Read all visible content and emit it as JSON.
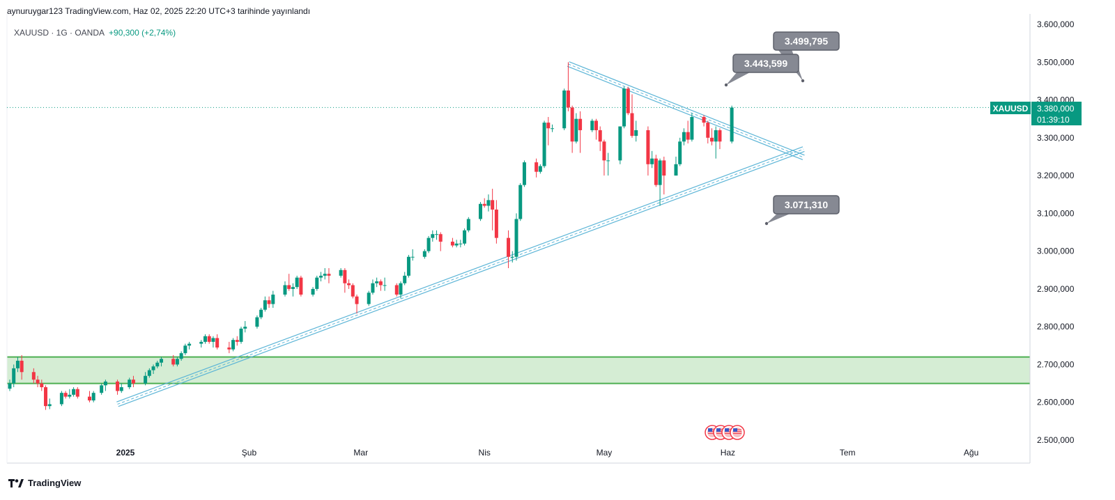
{
  "header": {
    "publisher_line": "aynuruygar123 TradingView.com, Haz 02, 2025 22:20 UTC+3 tarihinde yayınlandı"
  },
  "symbol": {
    "info": "XAUUSD · 1G · OANDA",
    "change": "+90,300 (+2,74%)"
  },
  "footer": {
    "logo_text": "TradingView"
  },
  "colors": {
    "up": "#089981",
    "down": "#f23645",
    "trendline": "#5ab4d6",
    "zone_fill": "#d5edd4",
    "zone_border": "#4caf50",
    "callout": "#868993"
  },
  "price_badge": {
    "symbol": "XAUUSD",
    "price": "3.380,000",
    "countdown": "01:39:10"
  },
  "chart_data": {
    "type": "candlestick",
    "y_axis_ticks": [
      "3.600,000",
      "3.500,000",
      "3.400,000",
      "3.300,000",
      "3.200,000",
      "3.100,000",
      "3.000,000",
      "2.900,000",
      "2.800,000",
      "2.700,000",
      "2.600,000",
      "2.500,000"
    ],
    "x_axis_labels": [
      {
        "label": "2025",
        "date": "2025-01-01"
      },
      {
        "label": "Şub",
        "date": "2025-02-01"
      },
      {
        "label": "Mar",
        "date": "2025-03-01"
      },
      {
        "label": "Nis",
        "date": "2025-04-01"
      },
      {
        "label": "May",
        "date": "2025-05-01"
      },
      {
        "label": "Haz",
        "date": "2025-06-01"
      },
      {
        "label": "Tem",
        "date": "2025-07-01"
      },
      {
        "label": "Ağu",
        "date": "2025-08-01"
      }
    ],
    "ylim": [
      2500,
      3600
    ],
    "date_range": [
      "2024-12-03",
      "2025-08-14"
    ],
    "candles": [
      {
        "date": "2024-12-03",
        "o": 2636,
        "h": 2660,
        "l": 2630,
        "c": 2650
      },
      {
        "date": "2024-12-04",
        "o": 2650,
        "h": 2700,
        "l": 2640,
        "c": 2690
      },
      {
        "date": "2024-12-05",
        "o": 2690,
        "h": 2720,
        "l": 2680,
        "c": 2710
      },
      {
        "date": "2024-12-06",
        "o": 2710,
        "h": 2725,
        "l": 2660,
        "c": 2680
      },
      {
        "date": "2024-12-09",
        "o": 2680,
        "h": 2690,
        "l": 2650,
        "c": 2660
      },
      {
        "date": "2024-12-10",
        "o": 2660,
        "h": 2670,
        "l": 2640,
        "c": 2650
      },
      {
        "date": "2024-12-11",
        "o": 2650,
        "h": 2660,
        "l": 2630,
        "c": 2640
      },
      {
        "date": "2024-12-12",
        "o": 2640,
        "h": 2645,
        "l": 2580,
        "c": 2590
      },
      {
        "date": "2024-12-13",
        "o": 2590,
        "h": 2610,
        "l": 2582,
        "c": 2595
      },
      {
        "date": "2024-12-16",
        "o": 2595,
        "h": 2630,
        "l": 2590,
        "c": 2625
      },
      {
        "date": "2024-12-17",
        "o": 2625,
        "h": 2630,
        "l": 2610,
        "c": 2615
      },
      {
        "date": "2024-12-18",
        "o": 2615,
        "h": 2635,
        "l": 2610,
        "c": 2620
      },
      {
        "date": "2024-12-19",
        "o": 2620,
        "h": 2640,
        "l": 2615,
        "c": 2635
      },
      {
        "date": "2024-12-20",
        "o": 2635,
        "h": 2640,
        "l": 2610,
        "c": 2615
      },
      {
        "date": "2024-12-23",
        "o": 2615,
        "h": 2630,
        "l": 2600,
        "c": 2605
      },
      {
        "date": "2024-12-24",
        "o": 2605,
        "h": 2630,
        "l": 2600,
        "c": 2625
      },
      {
        "date": "2024-12-26",
        "o": 2625,
        "h": 2650,
        "l": 2620,
        "c": 2645
      },
      {
        "date": "2024-12-27",
        "o": 2645,
        "h": 2660,
        "l": 2630,
        "c": 2655
      },
      {
        "date": "2024-12-30",
        "o": 2655,
        "h": 2660,
        "l": 2620,
        "c": 2630
      },
      {
        "date": "2024-12-31",
        "o": 2630,
        "h": 2650,
        "l": 2625,
        "c": 2640
      },
      {
        "date": "2025-01-02",
        "o": 2640,
        "h": 2665,
        "l": 2635,
        "c": 2660
      },
      {
        "date": "2025-01-03",
        "o": 2660,
        "h": 2670,
        "l": 2640,
        "c": 2650
      },
      {
        "date": "2025-01-06",
        "o": 2650,
        "h": 2680,
        "l": 2645,
        "c": 2670
      },
      {
        "date": "2025-01-07",
        "o": 2670,
        "h": 2690,
        "l": 2665,
        "c": 2685
      },
      {
        "date": "2025-01-08",
        "o": 2685,
        "h": 2700,
        "l": 2675,
        "c": 2695
      },
      {
        "date": "2025-01-09",
        "o": 2695,
        "h": 2710,
        "l": 2690,
        "c": 2705
      },
      {
        "date": "2025-01-10",
        "o": 2705,
        "h": 2720,
        "l": 2695,
        "c": 2715
      },
      {
        "date": "2025-01-13",
        "o": 2715,
        "h": 2725,
        "l": 2695,
        "c": 2700
      },
      {
        "date": "2025-01-14",
        "o": 2700,
        "h": 2720,
        "l": 2695,
        "c": 2715
      },
      {
        "date": "2025-01-15",
        "o": 2715,
        "h": 2735,
        "l": 2710,
        "c": 2730
      },
      {
        "date": "2025-01-16",
        "o": 2730,
        "h": 2755,
        "l": 2725,
        "c": 2750
      },
      {
        "date": "2025-01-17",
        "o": 2750,
        "h": 2760,
        "l": 2740,
        "c": 2755
      },
      {
        "date": "2025-01-20",
        "o": 2755,
        "h": 2765,
        "l": 2745,
        "c": 2760
      },
      {
        "date": "2025-01-21",
        "o": 2760,
        "h": 2780,
        "l": 2755,
        "c": 2775
      },
      {
        "date": "2025-01-22",
        "o": 2775,
        "h": 2780,
        "l": 2755,
        "c": 2760
      },
      {
        "date": "2025-01-23",
        "o": 2760,
        "h": 2775,
        "l": 2745,
        "c": 2770
      },
      {
        "date": "2025-01-24",
        "o": 2770,
        "h": 2780,
        "l": 2740,
        "c": 2745
      },
      {
        "date": "2025-01-27",
        "o": 2745,
        "h": 2760,
        "l": 2730,
        "c": 2740
      },
      {
        "date": "2025-01-28",
        "o": 2740,
        "h": 2770,
        "l": 2735,
        "c": 2765
      },
      {
        "date": "2025-01-29",
        "o": 2765,
        "h": 2775,
        "l": 2750,
        "c": 2760
      },
      {
        "date": "2025-01-30",
        "o": 2760,
        "h": 2800,
        "l": 2755,
        "c": 2795
      },
      {
        "date": "2025-01-31",
        "o": 2795,
        "h": 2815,
        "l": 2785,
        "c": 2800
      },
      {
        "date": "2025-02-03",
        "o": 2800,
        "h": 2830,
        "l": 2795,
        "c": 2825
      },
      {
        "date": "2025-02-04",
        "o": 2825,
        "h": 2850,
        "l": 2820,
        "c": 2845
      },
      {
        "date": "2025-02-05",
        "o": 2845,
        "h": 2880,
        "l": 2840,
        "c": 2870
      },
      {
        "date": "2025-02-06",
        "o": 2870,
        "h": 2880,
        "l": 2850,
        "c": 2860
      },
      {
        "date": "2025-02-07",
        "o": 2860,
        "h": 2895,
        "l": 2850,
        "c": 2885
      },
      {
        "date": "2025-02-10",
        "o": 2885,
        "h": 2920,
        "l": 2880,
        "c": 2910
      },
      {
        "date": "2025-02-11",
        "o": 2910,
        "h": 2940,
        "l": 2895,
        "c": 2900
      },
      {
        "date": "2025-02-12",
        "o": 2900,
        "h": 2915,
        "l": 2880,
        "c": 2905
      },
      {
        "date": "2025-02-13",
        "o": 2905,
        "h": 2935,
        "l": 2900,
        "c": 2930
      },
      {
        "date": "2025-02-14",
        "o": 2930,
        "h": 2935,
        "l": 2880,
        "c": 2885
      },
      {
        "date": "2025-02-17",
        "o": 2885,
        "h": 2905,
        "l": 2880,
        "c": 2900
      },
      {
        "date": "2025-02-18",
        "o": 2900,
        "h": 2935,
        "l": 2895,
        "c": 2930
      },
      {
        "date": "2025-02-19",
        "o": 2930,
        "h": 2945,
        "l": 2920,
        "c": 2935
      },
      {
        "date": "2025-02-20",
        "o": 2935,
        "h": 2955,
        "l": 2925,
        "c": 2940
      },
      {
        "date": "2025-02-21",
        "o": 2940,
        "h": 2955,
        "l": 2915,
        "c": 2935
      },
      {
        "date": "2025-02-24",
        "o": 2935,
        "h": 2955,
        "l": 2930,
        "c": 2950
      },
      {
        "date": "2025-02-25",
        "o": 2950,
        "h": 2955,
        "l": 2890,
        "c": 2915
      },
      {
        "date": "2025-02-26",
        "o": 2915,
        "h": 2925,
        "l": 2900,
        "c": 2910
      },
      {
        "date": "2025-02-27",
        "o": 2910,
        "h": 2915,
        "l": 2875,
        "c": 2880
      },
      {
        "date": "2025-02-28",
        "o": 2880,
        "h": 2885,
        "l": 2835,
        "c": 2860
      },
      {
        "date": "2025-03-03",
        "o": 2860,
        "h": 2895,
        "l": 2855,
        "c": 2890
      },
      {
        "date": "2025-03-04",
        "o": 2890,
        "h": 2925,
        "l": 2885,
        "c": 2915
      },
      {
        "date": "2025-03-05",
        "o": 2915,
        "h": 2930,
        "l": 2905,
        "c": 2920
      },
      {
        "date": "2025-03-06",
        "o": 2920,
        "h": 2925,
        "l": 2895,
        "c": 2910
      },
      {
        "date": "2025-03-07",
        "o": 2910,
        "h": 2930,
        "l": 2895,
        "c": 2910
      },
      {
        "date": "2025-03-10",
        "o": 2910,
        "h": 2915,
        "l": 2880,
        "c": 2885
      },
      {
        "date": "2025-03-11",
        "o": 2885,
        "h": 2920,
        "l": 2875,
        "c": 2915
      },
      {
        "date": "2025-03-12",
        "o": 2915,
        "h": 2945,
        "l": 2910,
        "c": 2935
      },
      {
        "date": "2025-03-13",
        "o": 2935,
        "h": 2990,
        "l": 2930,
        "c": 2985
      },
      {
        "date": "2025-03-14",
        "o": 2985,
        "h": 3005,
        "l": 2975,
        "c": 2985
      },
      {
        "date": "2025-03-17",
        "o": 2985,
        "h": 3005,
        "l": 2980,
        "c": 3000
      },
      {
        "date": "2025-03-18",
        "o": 3000,
        "h": 3040,
        "l": 2995,
        "c": 3035
      },
      {
        "date": "2025-03-19",
        "o": 3035,
        "h": 3055,
        "l": 3025,
        "c": 3045
      },
      {
        "date": "2025-03-20",
        "o": 3045,
        "h": 3055,
        "l": 3030,
        "c": 3045
      },
      {
        "date": "2025-03-21",
        "o": 3045,
        "h": 3050,
        "l": 3000,
        "c": 3025
      },
      {
        "date": "2025-03-24",
        "o": 3025,
        "h": 3035,
        "l": 3010,
        "c": 3015
      },
      {
        "date": "2025-03-25",
        "o": 3015,
        "h": 3030,
        "l": 3010,
        "c": 3020
      },
      {
        "date": "2025-03-26",
        "o": 3020,
        "h": 3030,
        "l": 3010,
        "c": 3020
      },
      {
        "date": "2025-03-27",
        "o": 3020,
        "h": 3060,
        "l": 3015,
        "c": 3055
      },
      {
        "date": "2025-03-28",
        "o": 3055,
        "h": 3090,
        "l": 3050,
        "c": 3085
      },
      {
        "date": "2025-03-31",
        "o": 3085,
        "h": 3130,
        "l": 3080,
        "c": 3125
      },
      {
        "date": "2025-04-01",
        "o": 3125,
        "h": 3140,
        "l": 3115,
        "c": 3120
      },
      {
        "date": "2025-04-02",
        "o": 3120,
        "h": 3150,
        "l": 3105,
        "c": 3135
      },
      {
        "date": "2025-04-03",
        "o": 3135,
        "h": 3165,
        "l": 3055,
        "c": 3110
      },
      {
        "date": "2025-04-04",
        "o": 3110,
        "h": 3135,
        "l": 3020,
        "c": 3035
      },
      {
        "date": "2025-04-07",
        "o": 3035,
        "h": 3055,
        "l": 2955,
        "c": 2985
      },
      {
        "date": "2025-04-08",
        "o": 2985,
        "h": 3000,
        "l": 2970,
        "c": 2985
      },
      {
        "date": "2025-04-09",
        "o": 2985,
        "h": 3100,
        "l": 2975,
        "c": 3085
      },
      {
        "date": "2025-04-10",
        "o": 3085,
        "h": 3180,
        "l": 3080,
        "c": 3175
      },
      {
        "date": "2025-04-11",
        "o": 3175,
        "h": 3240,
        "l": 3170,
        "c": 3235
      },
      {
        "date": "2025-04-14",
        "o": 3235,
        "h": 3245,
        "l": 3195,
        "c": 3210
      },
      {
        "date": "2025-04-15",
        "o": 3210,
        "h": 3230,
        "l": 3205,
        "c": 3225
      },
      {
        "date": "2025-04-16",
        "o": 3225,
        "h": 3345,
        "l": 3220,
        "c": 3340
      },
      {
        "date": "2025-04-17",
        "o": 3340,
        "h": 3355,
        "l": 3280,
        "c": 3325
      },
      {
        "date": "2025-04-18",
        "o": 3325,
        "h": 3335,
        "l": 3315,
        "c": 3325
      },
      {
        "date": "2025-04-21",
        "o": 3325,
        "h": 3430,
        "l": 3320,
        "c": 3425
      },
      {
        "date": "2025-04-22",
        "o": 3425,
        "h": 3500,
        "l": 3370,
        "c": 3380
      },
      {
        "date": "2025-04-23",
        "o": 3380,
        "h": 3385,
        "l": 3260,
        "c": 3290
      },
      {
        "date": "2025-04-24",
        "o": 3290,
        "h": 3365,
        "l": 3285,
        "c": 3350
      },
      {
        "date": "2025-04-25",
        "o": 3350,
        "h": 3370,
        "l": 3260,
        "c": 3320
      },
      {
        "date": "2025-04-28",
        "o": 3320,
        "h": 3350,
        "l": 3315,
        "c": 3345
      },
      {
        "date": "2025-04-29",
        "o": 3345,
        "h": 3350,
        "l": 3295,
        "c": 3320
      },
      {
        "date": "2025-04-30",
        "o": 3320,
        "h": 3330,
        "l": 3265,
        "c": 3290
      },
      {
        "date": "2025-05-01",
        "o": 3290,
        "h": 3295,
        "l": 3200,
        "c": 3240
      },
      {
        "date": "2025-05-02",
        "o": 3240,
        "h": 3260,
        "l": 3200,
        "c": 3240
      },
      {
        "date": "2025-05-05",
        "o": 3240,
        "h": 3330,
        "l": 3230,
        "c": 3330
      },
      {
        "date": "2025-05-06",
        "o": 3330,
        "h": 3435,
        "l": 3325,
        "c": 3430
      },
      {
        "date": "2025-05-07",
        "o": 3430,
        "h": 3435,
        "l": 3360,
        "c": 3365
      },
      {
        "date": "2025-05-08",
        "o": 3365,
        "h": 3415,
        "l": 3300,
        "c": 3305
      },
      {
        "date": "2025-05-09",
        "o": 3305,
        "h": 3345,
        "l": 3290,
        "c": 3320
      },
      {
        "date": "2025-05-12",
        "o": 3320,
        "h": 3330,
        "l": 3200,
        "c": 3230
      },
      {
        "date": "2025-05-13",
        "o": 3230,
        "h": 3265,
        "l": 3220,
        "c": 3245
      },
      {
        "date": "2025-05-14",
        "o": 3245,
        "h": 3255,
        "l": 3170,
        "c": 3175
      },
      {
        "date": "2025-05-15",
        "o": 3175,
        "h": 3245,
        "l": 3120,
        "c": 3240
      },
      {
        "date": "2025-05-16",
        "o": 3240,
        "h": 3250,
        "l": 3150,
        "c": 3200
      },
      {
        "date": "2025-05-19",
        "o": 3200,
        "h": 3250,
        "l": 3200,
        "c": 3230
      },
      {
        "date": "2025-05-20",
        "o": 3230,
        "h": 3300,
        "l": 3225,
        "c": 3290
      },
      {
        "date": "2025-05-21",
        "o": 3290,
        "h": 3325,
        "l": 3280,
        "c": 3315
      },
      {
        "date": "2025-05-22",
        "o": 3315,
        "h": 3345,
        "l": 3285,
        "c": 3295
      },
      {
        "date": "2025-05-23",
        "o": 3295,
        "h": 3365,
        "l": 3290,
        "c": 3355
      },
      {
        "date": "2025-05-26",
        "o": 3355,
        "h": 3360,
        "l": 3330,
        "c": 3340
      },
      {
        "date": "2025-05-27",
        "o": 3340,
        "h": 3345,
        "l": 3285,
        "c": 3300
      },
      {
        "date": "2025-05-28",
        "o": 3300,
        "h": 3325,
        "l": 3280,
        "c": 3290
      },
      {
        "date": "2025-05-29",
        "o": 3290,
        "h": 3330,
        "l": 3245,
        "c": 3320
      },
      {
        "date": "2025-05-30",
        "o": 3320,
        "h": 3325,
        "l": 3270,
        "c": 3290
      },
      {
        "date": "2025-06-02",
        "o": 3290,
        "h": 3385,
        "l": 3285,
        "c": 3380
      }
    ],
    "last_price": 3380,
    "support_zone": {
      "low": 2650,
      "high": 2720
    },
    "trendlines": [
      {
        "name": "rising support",
        "start": {
          "date": "2024-12-30",
          "price": 2595
        },
        "end": {
          "date": "2025-06-20",
          "price": 3270
        }
      },
      {
        "name": "falling resistance",
        "start": {
          "date": "2025-04-22",
          "price": 3495
        },
        "end": {
          "date": "2025-06-20",
          "price": 3248
        }
      }
    ],
    "callouts": [
      {
        "label": "3.499,795",
        "price": 3499.795
      },
      {
        "label": "3.443,599",
        "price": 3443.599
      },
      {
        "label": "3.071,310",
        "price": 3071.31
      }
    ]
  }
}
